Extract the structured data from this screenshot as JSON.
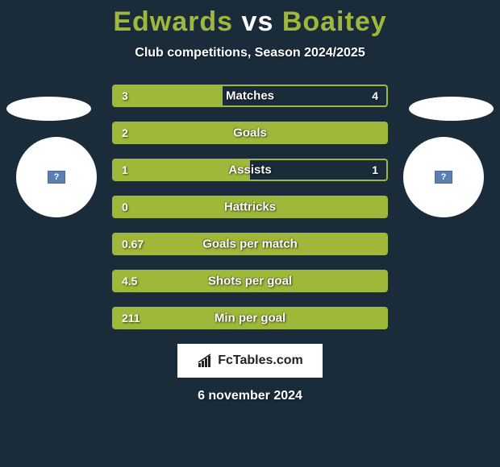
{
  "title": {
    "left": "Edwards",
    "vs": "vs",
    "right": "Boaitey"
  },
  "subtitle": "Club competitions, Season 2024/2025",
  "colors": {
    "background": "#1a2b3a",
    "accent": "#9fb83a",
    "white": "#ffffff"
  },
  "stats": [
    {
      "label": "Matches",
      "left_val": "3",
      "right_val": "4",
      "left_pct": 40,
      "right_pct": 0
    },
    {
      "label": "Goals",
      "left_val": "2",
      "right_val": "",
      "left_pct": 100,
      "right_pct": 0
    },
    {
      "label": "Assists",
      "left_val": "1",
      "right_val": "1",
      "left_pct": 50,
      "right_pct": 0
    },
    {
      "label": "Hattricks",
      "left_val": "0",
      "right_val": "",
      "left_pct": 100,
      "right_pct": 0
    },
    {
      "label": "Goals per match",
      "left_val": "0.67",
      "right_val": "",
      "left_pct": 100,
      "right_pct": 0
    },
    {
      "label": "Shots per goal",
      "left_val": "4.5",
      "right_val": "",
      "left_pct": 100,
      "right_pct": 0
    },
    {
      "label": "Min per goal",
      "left_val": "211",
      "right_val": "",
      "left_pct": 100,
      "right_pct": 0
    }
  ],
  "logo_text": "FcTables.com",
  "date": "6 november 2024"
}
